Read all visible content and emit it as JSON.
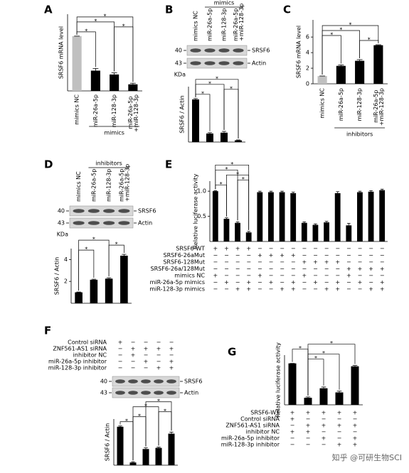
{
  "chart_data": [
    {
      "type": "bar",
      "panel": "A",
      "ylabel": "SRSF6 mRNA level",
      "categories": [
        "mimics NC",
        "miR-26a-5p",
        "miR-128-3p",
        "miR-26a-5p +miR-128-3p"
      ],
      "values": [
        1,
        0.37,
        0.3,
        0.12
      ],
      "errors": [
        0,
        0.04,
        0.03,
        0.02
      ],
      "colors": [
        "#c0c0c0",
        "#000000",
        "#000000",
        "#000000"
      ],
      "ylim": [
        0,
        1.4
      ],
      "significance": [
        {
          "bars": [
            0,
            1
          ],
          "label": "*"
        },
        {
          "bars": [
            2,
            3
          ],
          "label": "*"
        },
        {
          "bars": [
            0,
            2
          ],
          "label": "*"
        },
        {
          "bars": [
            0,
            3
          ],
          "label": "*"
        }
      ],
      "group": {
        "label": "mimics",
        "bars": [
          1,
          3
        ]
      }
    },
    {
      "type": "bar",
      "panel": "B",
      "ylabel": "SRSF6 / Actin",
      "values": [
        1,
        0.2,
        0.22,
        0.04
      ],
      "errors": [
        0.02,
        0.02,
        0.03,
        0.01
      ],
      "colors": [
        "#000000",
        "#000000",
        "#000000",
        "#000000"
      ],
      "ylim": [
        0,
        1.3
      ],
      "significance": [
        {
          "bars": [
            0,
            1
          ],
          "label": "*"
        },
        {
          "bars": [
            2,
            3
          ],
          "label": "*"
        },
        {
          "bars": [
            0,
            2
          ],
          "label": "*"
        },
        {
          "bars": [
            0,
            3
          ],
          "label": "*"
        }
      ],
      "blot": {
        "group": {
          "label": "mimics",
          "bars": [
            1,
            3
          ]
        },
        "lanes": [
          "mimics NC",
          "miR-26a-5p",
          "miR-128-3p",
          "miR-26a-5p +miR-128-3p"
        ],
        "rows": [
          {
            "mw": "40",
            "label": "SRSF6"
          },
          {
            "mw": "43",
            "label": "Actin"
          }
        ],
        "unit": "KDa"
      }
    },
    {
      "type": "bar",
      "panel": "C",
      "ylabel": "SRSF6 mRNA level",
      "categories": [
        "mimics NC",
        "miR-26a-5p",
        "miR-128-3p",
        "miR-26a-5p +miR-128-3p"
      ],
      "values": [
        1,
        2.3,
        2.95,
        4.95
      ],
      "errors": [
        0,
        0.12,
        0.15,
        0.06
      ],
      "colors": [
        "#c0c0c0",
        "#000000",
        "#000000",
        "#000000"
      ],
      "ylim": [
        0,
        8.2
      ],
      "yticks": [
        0,
        2,
        4,
        6
      ],
      "significance": [
        {
          "bars": [
            2,
            3
          ],
          "label": "*"
        },
        {
          "bars": [
            0,
            1
          ],
          "label": "*"
        },
        {
          "bars": [
            0,
            2
          ],
          "label": "*"
        },
        {
          "bars": [
            0,
            3
          ],
          "label": "*"
        }
      ],
      "group": {
        "label": "inhibitors",
        "bars": [
          1,
          3
        ]
      }
    },
    {
      "type": "bar",
      "panel": "D",
      "ylabel": "SRSF6 / Actin",
      "values": [
        1,
        2.15,
        2.25,
        4.35
      ],
      "errors": [
        0.03,
        0.05,
        0.08,
        0.12
      ],
      "colors": [
        "#000000",
        "#000000",
        "#000000",
        "#000000"
      ],
      "ylim": [
        0,
        5
      ],
      "yticks": [
        2,
        4
      ],
      "significance": [
        {
          "bars": [
            0,
            1
          ],
          "label": "*"
        },
        {
          "bars": [
            2,
            3
          ],
          "label": "*"
        },
        {
          "bars": [
            0,
            2
          ],
          "label": "*"
        }
      ],
      "blot": {
        "group": {
          "label": "inhibitors",
          "bars": [
            1,
            3
          ]
        },
        "lanes": [
          "mimics NC",
          "miR-26a-5p",
          "miR-128-3p",
          "miR-26a-5p +miR-128-3p"
        ],
        "rows": [
          {
            "mw": "40",
            "label": "SRSF6"
          },
          {
            "mw": "43",
            "label": "Actin"
          }
        ],
        "unit": "KDa"
      }
    },
    {
      "type": "bar",
      "panel": "E",
      "ylabel": "Relative luciferase activity",
      "values": [
        1,
        0.45,
        0.37,
        0.18,
        0.98,
        0.98,
        0.98,
        0.96,
        0.37,
        0.33,
        0.38,
        0.96,
        0.32,
        0.98,
        0.99,
        1.02
      ],
      "errors": [
        0.01,
        0.02,
        0.02,
        0.02,
        0.02,
        0.02,
        0.02,
        0.02,
        0.02,
        0.02,
        0.02,
        0.03,
        0.04,
        0.02,
        0.02,
        0.02
      ],
      "colors": [
        "#000000",
        "#000000",
        "#000000",
        "#000000",
        "#000000",
        "#000000",
        "#000000",
        "#000000",
        "#000000",
        "#000000",
        "#000000",
        "#000000",
        "#000000",
        "#000000",
        "#000000",
        "#000000"
      ],
      "ylim": [
        0,
        1.2
      ],
      "yticks": [
        0.5,
        {
          "value": 1,
          "label": "1.0"
        }
      ],
      "significance": [
        {
          "bars": [
            0,
            1
          ],
          "label": "*"
        },
        {
          "bars": [
            2,
            3
          ],
          "label": "*"
        },
        {
          "bars": [
            1,
            3
          ],
          "label": "*"
        },
        {
          "bars": [
            0,
            2
          ],
          "label": "*"
        },
        {
          "bars": [
            0,
            3
          ],
          "label": "*"
        }
      ],
      "table": {
        "rows": [
          {
            "label": "SRSF6-WT",
            "signs": [
              "+",
              "+",
              "+",
              "+",
              "−",
              "−",
              "−",
              "−",
              "−",
              "−",
              "−",
              "−",
              "−",
              "−",
              "−",
              "−"
            ]
          },
          {
            "label": "SRSF6-26aMut",
            "signs": [
              "−",
              "−",
              "−",
              "−",
              "+",
              "+",
              "+",
              "+",
              "−",
              "−",
              "−",
              "−",
              "−",
              "−",
              "−",
              "−"
            ]
          },
          {
            "label": "SRSF6-128Mut",
            "signs": [
              "−",
              "−",
              "−",
              "−",
              "−",
              "−",
              "−",
              "−",
              "+",
              "+",
              "+",
              "+",
              "−",
              "−",
              "−",
              "−"
            ]
          },
          {
            "label": "SRSF6-26a/128Mut",
            "signs": [
              "−",
              "−",
              "−",
              "−",
              "−",
              "−",
              "−",
              "−",
              "−",
              "−",
              "−",
              "−",
              "+",
              "+",
              "+",
              "+"
            ]
          },
          {
            "label": "mimics NC",
            "signs": [
              "+",
              "−",
              "−",
              "−",
              "+",
              "−",
              "−",
              "−",
              "+",
              "−",
              "−",
              "−",
              "+",
              "−",
              "−",
              "−"
            ]
          },
          {
            "label": "miR-26a-5p mimics",
            "signs": [
              "−",
              "+",
              "−",
              "+",
              "−",
              "+",
              "−",
              "+",
              "−",
              "+",
              "−",
              "+",
              "−",
              "+",
              "−",
              "+"
            ]
          },
          {
            "label": "miR-128-3p mimics",
            "signs": [
              "−",
              "−",
              "+",
              "+",
              "−",
              "−",
              "+",
              "+",
              "−",
              "−",
              "+",
              "+",
              "−",
              "−",
              "+",
              "+"
            ]
          }
        ]
      }
    },
    {
      "type": "bar",
      "panel": "F",
      "ylabel": "SRSF6 / Actin",
      "values": [
        1,
        0.07,
        0.42,
        0.45,
        0.82
      ],
      "errors": [
        0.02,
        0.02,
        0.03,
        0.02,
        0.04
      ],
      "colors": [
        "#000000",
        "#000000",
        "#000000",
        "#000000",
        "#000000"
      ],
      "ylim": [
        0,
        1.2
      ],
      "significance": [
        {
          "bars": [
            0,
            1
          ],
          "label": "*"
        },
        {
          "bars": [
            1,
            2
          ],
          "label": "*"
        },
        {
          "bars": [
            3,
            4
          ],
          "label": "*"
        },
        {
          "bars": [
            1,
            3
          ],
          "label": "*"
        },
        {
          "bars": [
            2,
            4
          ],
          "label": "*"
        }
      ],
      "table": {
        "rows": [
          {
            "label": "Control siRNA",
            "signs": [
              "+",
              "−",
              "−",
              "−",
              "−"
            ]
          },
          {
            "label": "ZNF561-AS1 siRNA",
            "signs": [
              "−",
              "+",
              "+",
              "+",
              "+"
            ]
          },
          {
            "label": "inhibitor NC",
            "signs": [
              "−",
              "+",
              "−",
              "−",
              "−"
            ]
          },
          {
            "label": "miR-26a-5p inhibitor",
            "signs": [
              "−",
              "−",
              "+",
              "−",
              "+"
            ]
          },
          {
            "label": "miR-128-3p inhibitor",
            "signs": [
              "−",
              "−",
              "−",
              "+",
              "+"
            ]
          }
        ]
      },
      "blot": {
        "rows": [
          {
            "mw": "40",
            "label": "SRSF6"
          },
          {
            "mw": "43",
            "label": "Actin"
          }
        ]
      }
    },
    {
      "type": "bar",
      "panel": "G",
      "ylabel": "Relative luciferase activity",
      "values": [
        1,
        0.17,
        0.4,
        0.3,
        0.93
      ],
      "errors": [
        0,
        0.02,
        0.03,
        0.03,
        0.02
      ],
      "colors": [
        "#000000",
        "#000000",
        "#000000",
        "#000000",
        "#000000"
      ],
      "ylim": [
        0,
        1.2
      ],
      "significance": [
        {
          "bars": [
            1,
            2
          ],
          "label": "*"
        },
        {
          "bars": [
            1,
            3
          ],
          "label": "*"
        },
        {
          "bars": [
            0,
            1
          ],
          "label": "*"
        },
        {
          "bars": [
            1,
            4
          ],
          "label": "*"
        }
      ],
      "table": {
        "rows": [
          {
            "label": "SRSF6-WT",
            "signs": [
              "+",
              "+",
              "+",
              "+",
              "+"
            ]
          },
          {
            "label": "Control siRNA",
            "signs": [
              "+",
              "−",
              "−",
              "−",
              "−"
            ]
          },
          {
            "label": "ZNF561-AS1 siRNA",
            "signs": [
              "−",
              "+",
              "+",
              "+",
              "+"
            ]
          },
          {
            "label": "inhibitor NC",
            "signs": [
              "+",
              "+",
              "−",
              "−",
              "−"
            ]
          },
          {
            "label": "miR-26a-5p inhibitor",
            "signs": [
              "−",
              "−",
              "+",
              "−",
              "+"
            ]
          },
          {
            "label": "miR-128-3p inhibitor",
            "signs": [
              "−",
              "−",
              "−",
              "+",
              "+"
            ]
          }
        ]
      }
    }
  ],
  "watermark": "知乎 @可研生物SCI"
}
